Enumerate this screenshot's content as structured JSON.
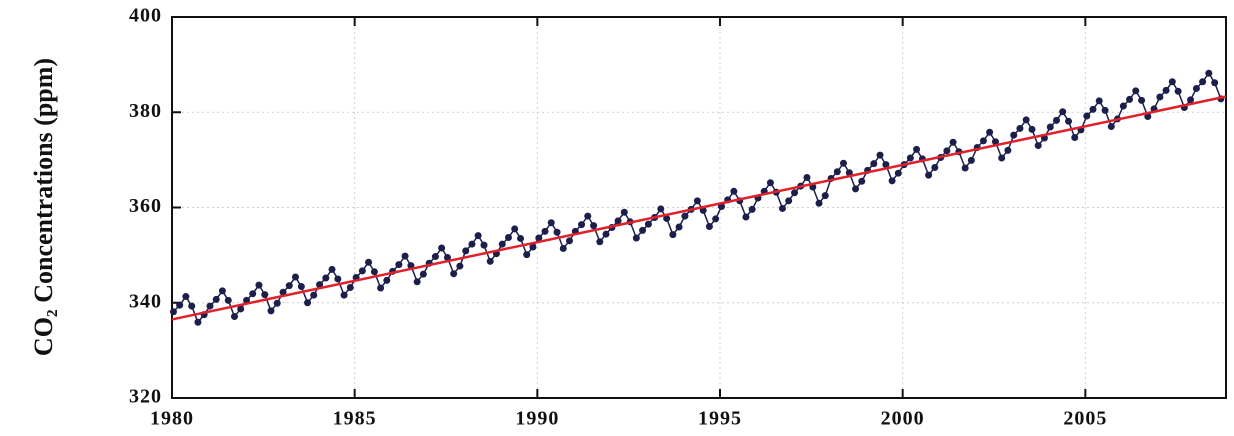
{
  "chart_data": {
    "type": "line",
    "ylabel": "CO₂ Concentrations (ppm)",
    "xlim": [
      1980,
      2008.85
    ],
    "ylim": [
      320,
      400
    ],
    "xticks": [
      1980,
      1985,
      1990,
      1995,
      2000,
      2005
    ],
    "yticks": [
      320,
      340,
      360,
      380,
      400
    ],
    "grid": true,
    "series": [
      {
        "color": "#1b1f4a",
        "markers": true,
        "x": [
          1980.04,
          1980.21,
          1980.38,
          1980.54,
          1980.71,
          1980.88,
          1981.04,
          1981.21,
          1981.38,
          1981.54,
          1981.71,
          1981.88,
          1982.04,
          1982.21,
          1982.38,
          1982.54,
          1982.71,
          1982.88,
          1983.04,
          1983.21,
          1983.38,
          1983.54,
          1983.71,
          1983.88,
          1984.04,
          1984.21,
          1984.38,
          1984.54,
          1984.71,
          1984.88,
          1985.04,
          1985.21,
          1985.38,
          1985.54,
          1985.71,
          1985.88,
          1986.04,
          1986.21,
          1986.38,
          1986.54,
          1986.71,
          1986.88,
          1987.04,
          1987.21,
          1987.38,
          1987.54,
          1987.71,
          1987.88,
          1988.04,
          1988.21,
          1988.38,
          1988.54,
          1988.71,
          1988.88,
          1989.04,
          1989.21,
          1989.38,
          1989.54,
          1989.71,
          1989.88,
          1990.04,
          1990.21,
          1990.38,
          1990.54,
          1990.71,
          1990.88,
          1991.04,
          1991.21,
          1991.38,
          1991.54,
          1991.71,
          1991.88,
          1992.04,
          1992.21,
          1992.38,
          1992.54,
          1992.71,
          1992.88,
          1993.04,
          1993.21,
          1993.38,
          1993.54,
          1993.71,
          1993.88,
          1994.04,
          1994.21,
          1994.38,
          1994.54,
          1994.71,
          1994.88,
          1995.04,
          1995.21,
          1995.38,
          1995.54,
          1995.71,
          1995.88,
          1996.04,
          1996.21,
          1996.38,
          1996.54,
          1996.71,
          1996.88,
          1997.04,
          1997.21,
          1997.38,
          1997.54,
          1997.71,
          1997.88,
          1998.04,
          1998.21,
          1998.38,
          1998.54,
          1998.71,
          1998.88,
          1999.04,
          1999.21,
          1999.38,
          1999.54,
          1999.71,
          1999.88,
          2000.04,
          2000.21,
          2000.38,
          2000.54,
          2000.71,
          2000.88,
          2001.04,
          2001.21,
          2001.38,
          2001.54,
          2001.71,
          2001.88,
          2002.04,
          2002.21,
          2002.38,
          2002.54,
          2002.71,
          2002.88,
          2003.04,
          2003.21,
          2003.38,
          2003.54,
          2003.71,
          2003.88,
          2004.04,
          2004.21,
          2004.38,
          2004.54,
          2004.71,
          2004.88,
          2005.04,
          2005.21,
          2005.38,
          2005.54,
          2005.71,
          2005.88,
          2006.04,
          2006.21,
          2006.38,
          2006.54,
          2006.71,
          2006.88,
          2007.04,
          2007.21,
          2007.38,
          2007.54,
          2007.71,
          2007.88,
          2008.04,
          2008.21,
          2008.38,
          2008.54,
          2008.71
        ],
        "values": [
          338.1,
          339.5,
          341.3,
          339.3,
          335.9,
          337.5,
          339.3,
          340.7,
          342.5,
          340.5,
          337.1,
          338.7,
          340.5,
          341.9,
          343.7,
          341.7,
          338.3,
          339.9,
          342.2,
          343.6,
          345.4,
          343.4,
          340.0,
          341.6,
          343.8,
          345.2,
          347.0,
          345.0,
          341.6,
          343.2,
          345.3,
          346.7,
          348.5,
          346.5,
          343.1,
          344.7,
          346.6,
          348.0,
          349.8,
          347.8,
          344.4,
          346.0,
          348.3,
          349.7,
          351.5,
          349.5,
          346.1,
          347.7,
          350.9,
          352.3,
          354.1,
          352.1,
          348.7,
          350.3,
          352.3,
          353.7,
          355.5,
          353.5,
          350.1,
          351.7,
          353.6,
          355.0,
          356.8,
          354.8,
          351.4,
          353.0,
          355.0,
          356.4,
          358.2,
          356.2,
          352.8,
          354.4,
          355.8,
          357.2,
          359.0,
          357.0,
          353.6,
          355.2,
          356.5,
          357.9,
          359.7,
          357.7,
          354.3,
          355.9,
          358.2,
          359.6,
          361.4,
          359.4,
          356.0,
          357.6,
          360.2,
          361.6,
          363.4,
          361.4,
          358.0,
          359.6,
          362.0,
          363.4,
          365.2,
          363.2,
          359.8,
          361.4,
          363.1,
          364.5,
          366.3,
          364.3,
          360.9,
          362.5,
          366.1,
          367.5,
          369.3,
          367.3,
          363.9,
          365.5,
          367.8,
          369.2,
          371.0,
          369.0,
          365.6,
          367.2,
          369.0,
          370.4,
          372.2,
          370.2,
          366.8,
          368.4,
          370.5,
          371.9,
          373.7,
          371.7,
          368.3,
          369.9,
          372.6,
          374.0,
          375.8,
          373.8,
          370.4,
          372.0,
          375.2,
          376.6,
          378.4,
          376.4,
          373.0,
          374.6,
          376.9,
          378.3,
          380.1,
          378.1,
          374.7,
          376.3,
          379.2,
          380.6,
          382.4,
          380.4,
          377.0,
          378.6,
          381.3,
          382.7,
          384.5,
          382.5,
          379.1,
          380.7,
          383.2,
          384.6,
          386.4,
          384.4,
          381.0,
          382.6,
          385.0,
          386.4,
          388.2,
          386.2,
          382.8
        ]
      },
      {
        "color": "#e0202a",
        "markers": false,
        "x": [
          1980,
          2008.85
        ],
        "values": [
          336.5,
          383.3
        ]
      }
    ]
  }
}
